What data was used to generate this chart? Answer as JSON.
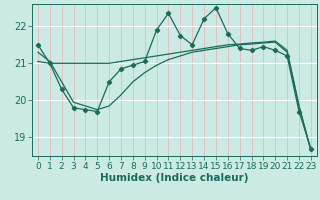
{
  "xlabel": "Humidex (Indice chaleur)",
  "bg_color": "#cceae4",
  "grid_color_major": "#ffffff",
  "grid_color_minor": "#e8b0b0",
  "line_color": "#1a6b5a",
  "xlim": [
    -0.5,
    23.5
  ],
  "ylim": [
    18.5,
    22.6
  ],
  "yticks": [
    19,
    20,
    21,
    22
  ],
  "xticks": [
    0,
    1,
    2,
    3,
    4,
    5,
    6,
    7,
    8,
    9,
    10,
    11,
    12,
    13,
    14,
    15,
    16,
    17,
    18,
    19,
    20,
    21,
    22,
    23
  ],
  "line1_x": [
    0,
    1,
    2,
    3,
    4,
    5,
    6,
    7,
    8,
    9,
    10,
    11,
    12,
    13,
    14,
    15,
    16,
    17,
    18,
    19,
    20,
    21,
    22,
    23
  ],
  "line1_y": [
    21.5,
    21.0,
    20.3,
    19.8,
    19.75,
    19.7,
    20.5,
    20.85,
    20.95,
    21.05,
    21.9,
    22.35,
    21.75,
    21.5,
    22.2,
    22.5,
    21.8,
    21.4,
    21.35,
    21.45,
    21.35,
    21.2,
    19.7,
    18.7
  ],
  "line2_x": [
    0,
    1,
    2,
    3,
    4,
    5,
    6,
    7,
    8,
    9,
    10,
    11,
    12,
    13,
    14,
    15,
    16,
    17,
    18,
    19,
    20,
    21,
    22,
    23
  ],
  "line2_y": [
    21.05,
    21.0,
    21.0,
    21.0,
    21.0,
    21.0,
    21.0,
    21.05,
    21.1,
    21.15,
    21.2,
    21.25,
    21.3,
    21.35,
    21.4,
    21.45,
    21.5,
    21.52,
    21.55,
    21.57,
    21.6,
    21.35,
    19.85,
    18.65
  ],
  "line3_x": [
    0,
    1,
    2,
    3,
    4,
    5,
    6,
    7,
    8,
    9,
    10,
    11,
    12,
    13,
    14,
    15,
    16,
    17,
    18,
    19,
    20,
    21,
    22,
    23
  ],
  "line3_y": [
    21.3,
    21.05,
    20.5,
    19.95,
    19.85,
    19.75,
    19.85,
    20.15,
    20.5,
    20.75,
    20.95,
    21.1,
    21.2,
    21.3,
    21.35,
    21.4,
    21.45,
    21.5,
    21.52,
    21.55,
    21.57,
    21.3,
    19.85,
    18.65
  ],
  "font_color": "#1a6b5a",
  "tick_fontsize": 6.5,
  "label_fontsize": 7.5
}
